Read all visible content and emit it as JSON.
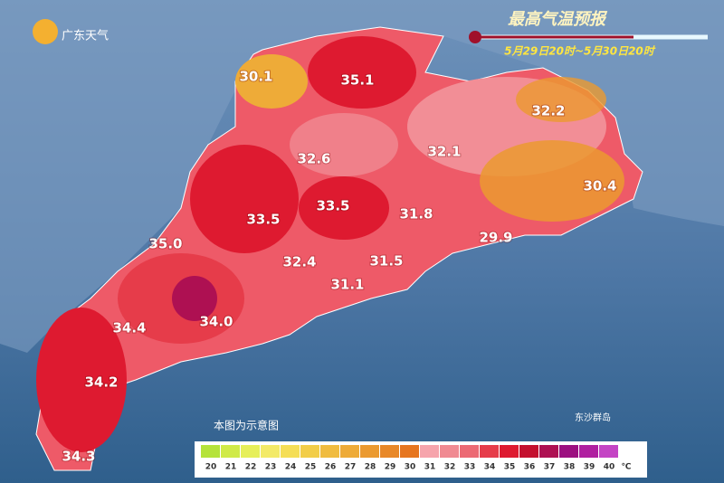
{
  "header": {
    "logo": "广东天气",
    "title": "最高气温预报",
    "subtitle": "5月29日20时~5月30日20时"
  },
  "labels": [
    {
      "text": "30.1"
    },
    {
      "text": "35.1"
    },
    {
      "text": "32.2"
    },
    {
      "text": "32.6"
    },
    {
      "text": "32.1"
    },
    {
      "text": "30.4"
    },
    {
      "text": "33.5"
    },
    {
      "text": "33.5"
    },
    {
      "text": "31.8"
    },
    {
      "text": "35.0"
    },
    {
      "text": "29.9"
    },
    {
      "text": "32.4"
    },
    {
      "text": "31.5"
    },
    {
      "text": "31.1"
    },
    {
      "text": "34.4"
    },
    {
      "text": "34.0"
    },
    {
      "text": "34.2"
    },
    {
      "text": "34.3"
    }
  ],
  "islands": "东沙群岛",
  "note": "本图为示意图",
  "watermark": "@广东天气",
  "legend": {
    "unit": "℃",
    "items": [
      {
        "value": 20,
        "color": "#b5e33a"
      },
      {
        "value": 21,
        "color": "#d0ea48"
      },
      {
        "value": 22,
        "color": "#e6ef5a"
      },
      {
        "value": 23,
        "color": "#f3ea68"
      },
      {
        "value": 24,
        "color": "#f5de56"
      },
      {
        "value": 25,
        "color": "#f2cd48"
      },
      {
        "value": 26,
        "color": "#f0bc40"
      },
      {
        "value": 27,
        "color": "#eeab38"
      },
      {
        "value": 28,
        "color": "#eb9a30"
      },
      {
        "value": 29,
        "color": "#e88828"
      },
      {
        "value": 30,
        "color": "#e67620"
      },
      {
        "value": 31,
        "color": "#f6a4ac"
      },
      {
        "value": 32,
        "color": "#f08a92"
      },
      {
        "value": 33,
        "color": "#ec6a74"
      },
      {
        "value": 34,
        "color": "#e63c4a"
      },
      {
        "value": 35,
        "color": "#de1a30"
      },
      {
        "value": 36,
        "color": "#c4102e"
      },
      {
        "value": 37,
        "color": "#ae1052"
      },
      {
        "value": 38,
        "color": "#9c1080"
      },
      {
        "value": 39,
        "color": "#b020a0"
      },
      {
        "value": 40,
        "color": "#c444c4"
      }
    ]
  }
}
